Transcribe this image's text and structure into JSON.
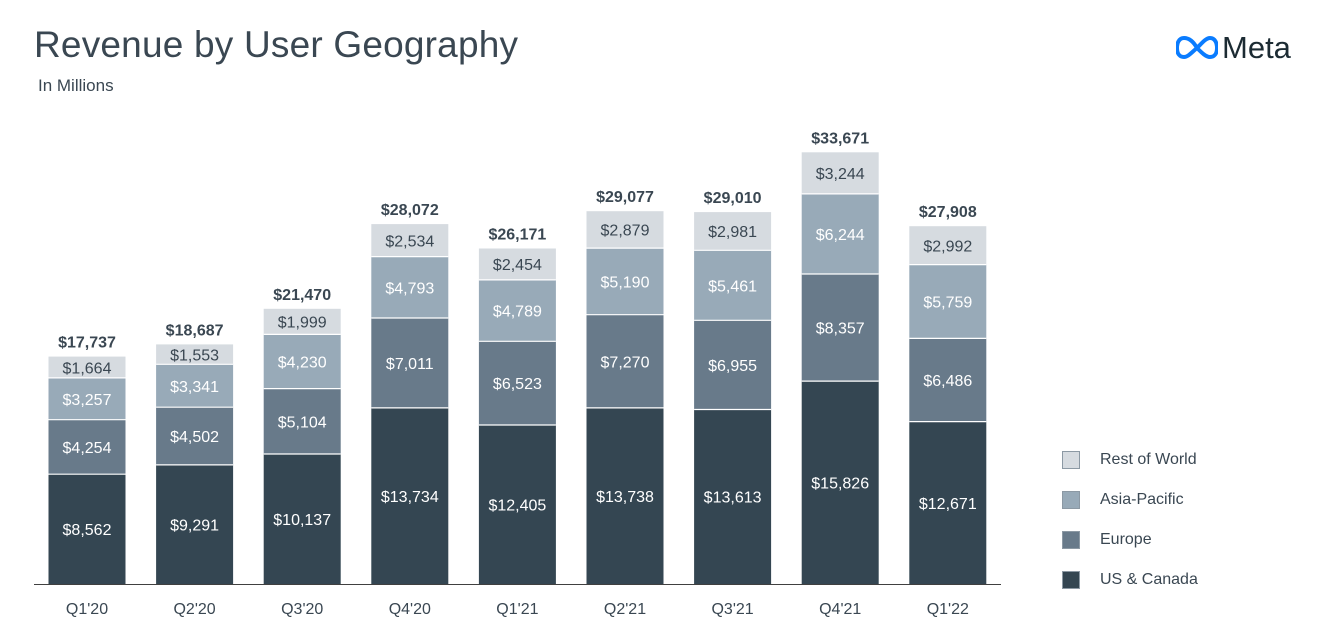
{
  "header": {
    "title": "Revenue by User Geography",
    "subtitle": "In Millions",
    "logo_text": "Meta",
    "logo_icon": "meta-infinity-logo"
  },
  "colors": {
    "us_canada": "#344652",
    "europe": "#687a8a",
    "asia_pacific": "#98aab8",
    "rest_of_world": "#d6dbe0",
    "text": "#3a4752",
    "axis": "#404040",
    "logo_blue": "#0a7cff"
  },
  "chart_data": {
    "type": "bar",
    "stacked": true,
    "title": "Revenue by User Geography",
    "subtitle": "In Millions",
    "categories": [
      "Q1'20",
      "Q2'20",
      "Q3'20",
      "Q4'20",
      "Q1'21",
      "Q2'21",
      "Q3'21",
      "Q4'21",
      "Q1'22"
    ],
    "series": [
      {
        "name": "US & Canada",
        "key": "us_canada",
        "values": [
          8562,
          9291,
          10137,
          13734,
          12405,
          13738,
          13613,
          15826,
          12671
        ],
        "labels": [
          "$8,562",
          "$9,291",
          "$10,137",
          "$13,734",
          "$12,405",
          "$13,738",
          "$13,613",
          "$15,826",
          "$12,671"
        ]
      },
      {
        "name": "Europe",
        "key": "europe",
        "values": [
          4254,
          4502,
          5104,
          7011,
          6523,
          7270,
          6955,
          8357,
          6486
        ],
        "labels": [
          "$4,254",
          "$4,502",
          "$5,104",
          "$7,011",
          "$6,523",
          "$7,270",
          "$6,955",
          "$8,357",
          "$6,486"
        ]
      },
      {
        "name": "Asia-Pacific",
        "key": "asia_pacific",
        "values": [
          3257,
          3341,
          4230,
          4793,
          4789,
          5190,
          5461,
          6244,
          5759
        ],
        "labels": [
          "$3,257",
          "$3,341",
          "$4,230",
          "$4,793",
          "$4,789",
          "$5,190",
          "$5,461",
          "$6,244",
          "$5,759"
        ]
      },
      {
        "name": "Rest of World",
        "key": "rest_of_world",
        "values": [
          1664,
          1553,
          1999,
          2534,
          2454,
          2879,
          2981,
          3244,
          2992
        ],
        "labels": [
          "$1,664",
          "$1,553",
          "$1,999",
          "$2,534",
          "$2,454",
          "$2,879",
          "$2,981",
          "$3,244",
          "$2,992"
        ]
      }
    ],
    "totals": [
      17737,
      18687,
      21470,
      28072,
      26171,
      29077,
      29010,
      33671,
      27908
    ],
    "total_labels": [
      "$17,737",
      "$18,687",
      "$21,470",
      "$28,072",
      "$26,171",
      "$29,077",
      "$29,010",
      "$33,671",
      "$27,908"
    ],
    "ylim": [
      0,
      40000
    ],
    "xlabel": "",
    "ylabel": "",
    "grid": false,
    "legend_position": "right"
  },
  "legend": {
    "items": [
      {
        "label": "Rest of World",
        "key": "rest_of_world"
      },
      {
        "label": "Asia-Pacific",
        "key": "asia_pacific"
      },
      {
        "label": "Europe",
        "key": "europe"
      },
      {
        "label": "US & Canada",
        "key": "us_canada"
      }
    ]
  }
}
